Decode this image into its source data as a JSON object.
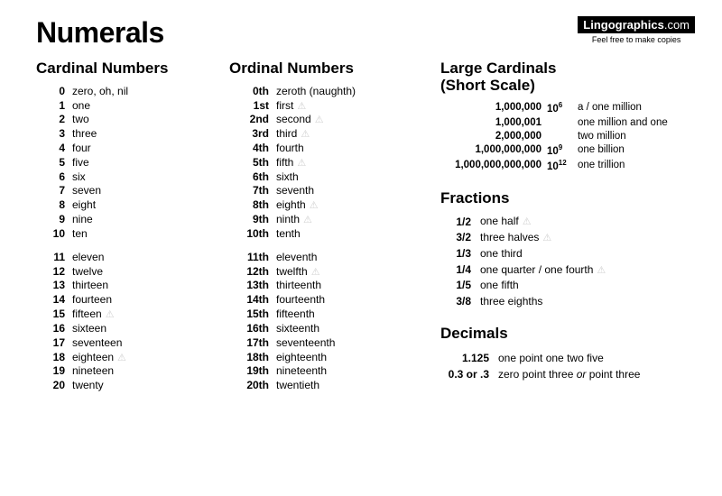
{
  "title": "Numerals",
  "brand": {
    "name": "Lingographics",
    "suffix": ".com",
    "tagline": "Feel free to make copies"
  },
  "warn_glyph": "⚠",
  "cardinal": {
    "heading": "Cardinal Numbers",
    "group1": [
      {
        "n": "0",
        "w": "zero, oh, nil"
      },
      {
        "n": "1",
        "w": "one"
      },
      {
        "n": "2",
        "w": "two"
      },
      {
        "n": "3",
        "w": "three"
      },
      {
        "n": "4",
        "w": "four"
      },
      {
        "n": "5",
        "w": "five"
      },
      {
        "n": "6",
        "w": "six"
      },
      {
        "n": "7",
        "w": "seven"
      },
      {
        "n": "8",
        "w": "eight"
      },
      {
        "n": "9",
        "w": "nine"
      },
      {
        "n": "10",
        "w": "ten"
      }
    ],
    "group2": [
      {
        "n": "11",
        "w": "eleven"
      },
      {
        "n": "12",
        "w": "twelve"
      },
      {
        "n": "13",
        "w": "thirteen"
      },
      {
        "n": "14",
        "w": "fourteen"
      },
      {
        "n": "15",
        "w": "fifteen",
        "warn": true
      },
      {
        "n": "16",
        "w": "sixteen"
      },
      {
        "n": "17",
        "w": "seventeen"
      },
      {
        "n": "18",
        "w": "eighteen",
        "warn": true
      },
      {
        "n": "19",
        "w": "nineteen"
      },
      {
        "n": "20",
        "w": "twenty"
      }
    ]
  },
  "ordinal": {
    "heading": "Ordinal Numbers",
    "group1": [
      {
        "n": "0th",
        "w": "zeroth (naughth)"
      },
      {
        "n": "1st",
        "w": "first",
        "warn": true
      },
      {
        "n": "2nd",
        "w": "second",
        "warn": true
      },
      {
        "n": "3rd",
        "w": "third",
        "warn": true
      },
      {
        "n": "4th",
        "w": "fourth"
      },
      {
        "n": "5th",
        "w": "fifth",
        "warn": true
      },
      {
        "n": "6th",
        "w": "sixth"
      },
      {
        "n": "7th",
        "w": "seventh"
      },
      {
        "n": "8th",
        "w": "eighth",
        "warn": true
      },
      {
        "n": "9th",
        "w": "ninth",
        "warn": true
      },
      {
        "n": "10th",
        "w": "tenth"
      }
    ],
    "group2": [
      {
        "n": "11th",
        "w": "eleventh"
      },
      {
        "n": "12th",
        "w": "twelfth",
        "warn": true
      },
      {
        "n": "13th",
        "w": "thirteenth"
      },
      {
        "n": "14th",
        "w": "fourteenth"
      },
      {
        "n": "15th",
        "w": "fifteenth"
      },
      {
        "n": "16th",
        "w": "sixteenth"
      },
      {
        "n": "17th",
        "w": "seventeenth"
      },
      {
        "n": "18th",
        "w": "eighteenth"
      },
      {
        "n": "19th",
        "w": "nineteenth"
      },
      {
        "n": "20th",
        "w": "twentieth"
      }
    ]
  },
  "large": {
    "heading": "Large Cardinals\n(Short Scale)",
    "rows": [
      {
        "n": "1,000,000",
        "p": "10",
        "e": "6",
        "w": "a / one million"
      },
      {
        "n": "1,000,001",
        "p": "",
        "e": "",
        "w": "one million and one"
      },
      {
        "n": "2,000,000",
        "p": "",
        "e": "",
        "w": "two million"
      },
      {
        "n": "1,000,000,000",
        "p": "10",
        "e": "9",
        "w": "one billion"
      },
      {
        "n": "1,000,000,000,000",
        "p": "10",
        "e": "12",
        "w": "one trillion"
      }
    ]
  },
  "fractions": {
    "heading": "Fractions",
    "rows": [
      {
        "n": "1/2",
        "w": "one half",
        "warn": true
      },
      {
        "n": "3/2",
        "w": "three halves",
        "warn": true
      },
      {
        "n": "1/3",
        "w": "one third"
      },
      {
        "n": "1/4",
        "w": "one quarter / one fourth",
        "warn": true
      },
      {
        "n": "1/5",
        "w": "one fifth"
      },
      {
        "n": "3/8",
        "w": "three eighths"
      }
    ]
  },
  "decimals": {
    "heading": "Decimals",
    "rows": [
      {
        "n": "1.125",
        "w": "one point one two five"
      },
      {
        "n": "0.3 or .3",
        "w_html": "zero point three <em class='or'>or</em> point three"
      }
    ]
  }
}
